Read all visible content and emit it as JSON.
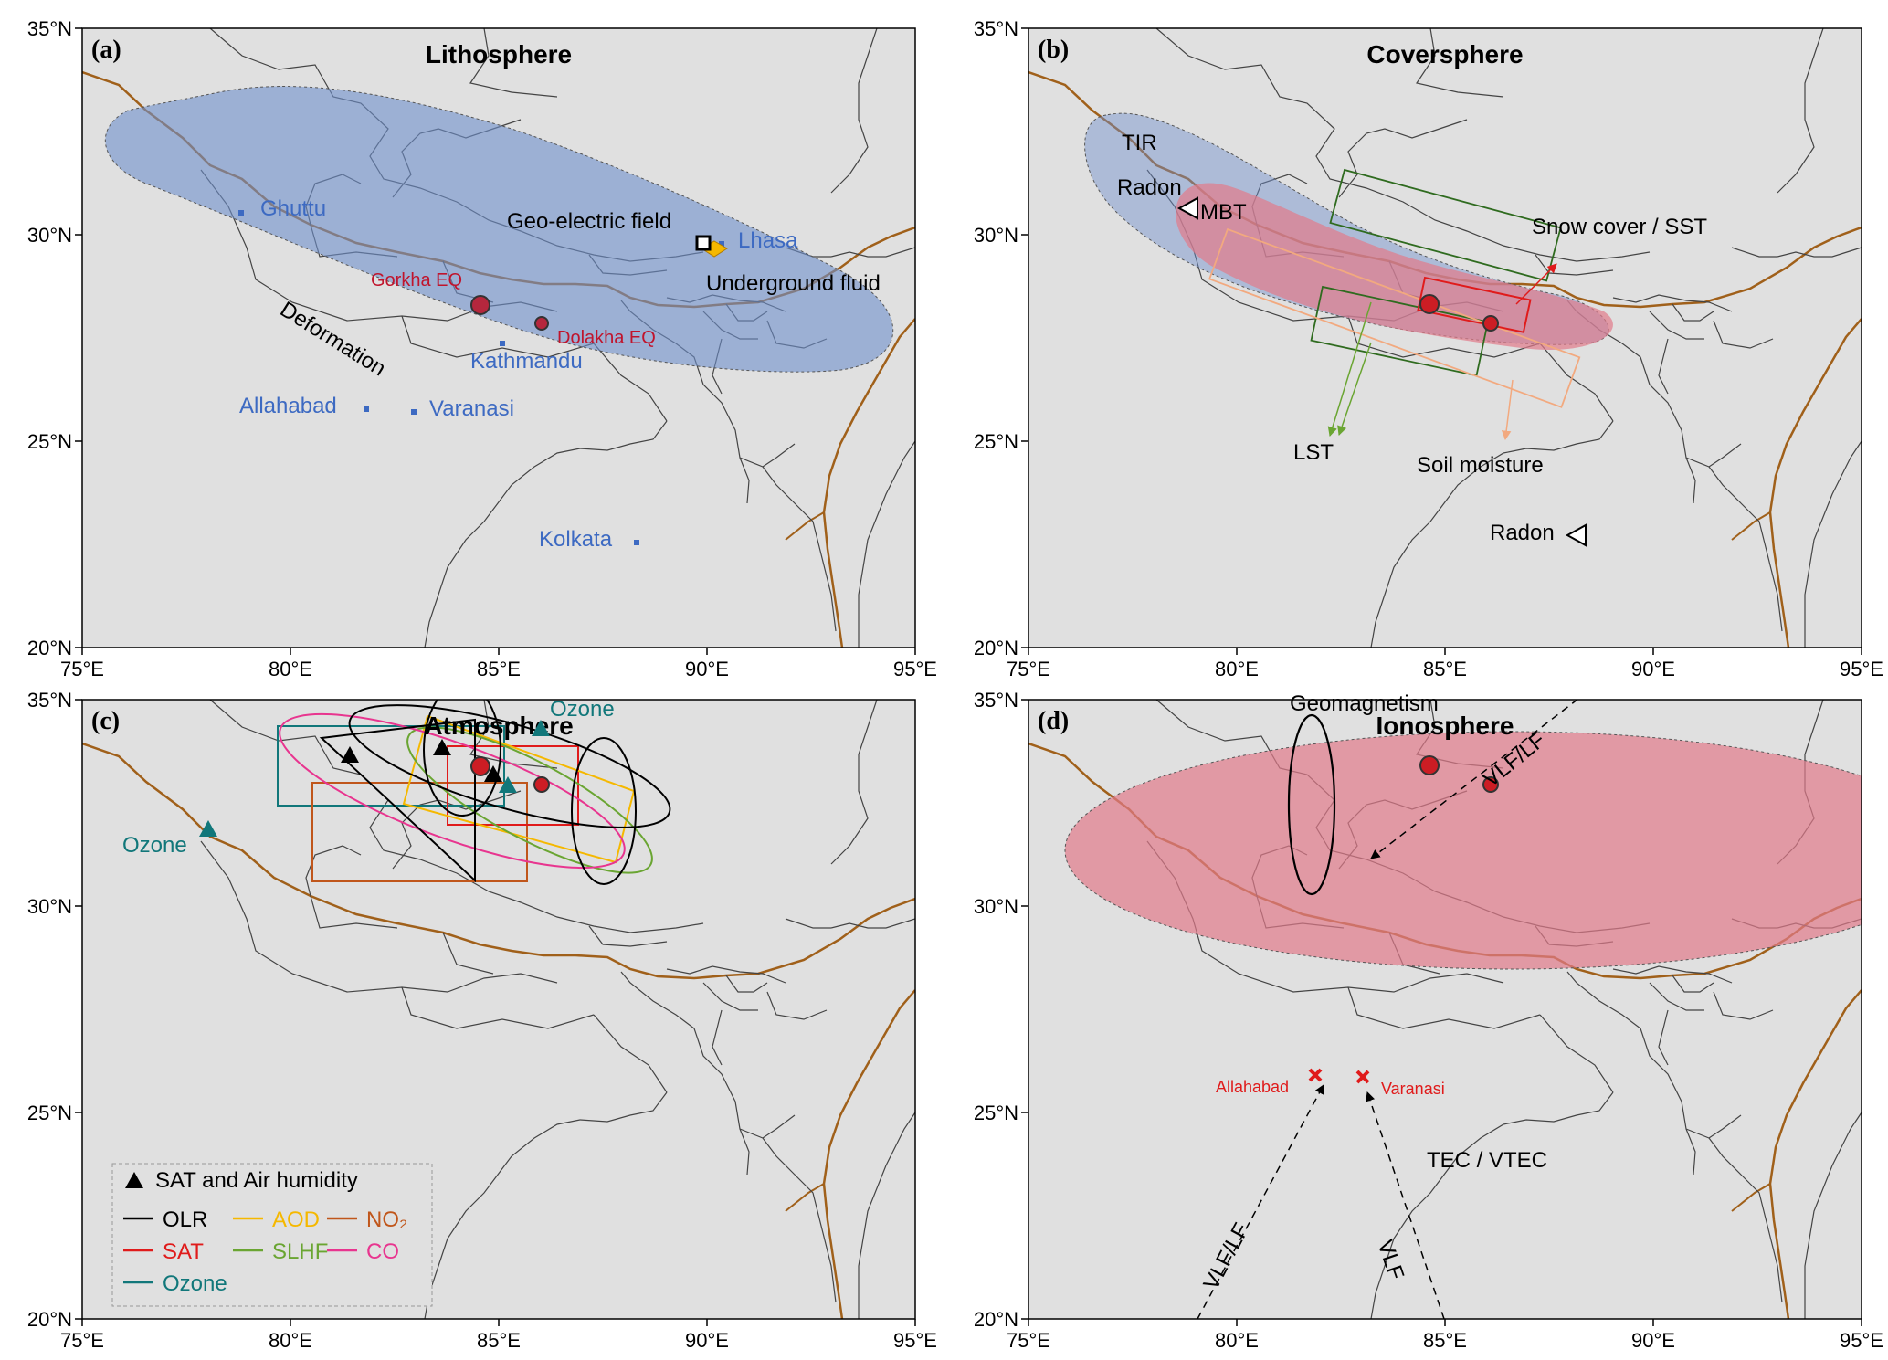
{
  "axes": {
    "x_ticks": [
      "75°E",
      "80°E",
      "85°E",
      "90°E",
      "95°E"
    ],
    "y_ticks": [
      "20°N",
      "25°N",
      "30°N",
      "35°N"
    ]
  },
  "panels": {
    "a": {
      "label": "(a)",
      "title": "Lithosphere",
      "cities": [
        "Ghuttu",
        "Lhasa",
        "Kathmandu",
        "Allahabad",
        "Varanasi",
        "Kolkata"
      ],
      "gorkha": "Gorkha EQ",
      "dolakha": "Dolakha EQ",
      "geo_electric": "Geo-electric field",
      "underground": "Underground fluid",
      "deformation": "Deformation"
    },
    "b": {
      "label": "(b)",
      "title": "Coversphere",
      "tir": "TIR",
      "radon": "Radon",
      "mbt": "MBT",
      "snow": "Snow cover / SST",
      "lst": "LST",
      "soil": "Soil moisture",
      "radon2": "Radon"
    },
    "c": {
      "label": "(c)",
      "title": "Atmosphere",
      "ozone": "Ozone",
      "legend": {
        "marker_label": "SAT and Air humidity",
        "items": [
          {
            "label": "OLR",
            "color": "#000000"
          },
          {
            "label": "AOD",
            "color": "#f5b800"
          },
          {
            "label": "NO₂",
            "color": "#c0561b"
          },
          {
            "label": "SAT",
            "color": "#e01b1b"
          },
          {
            "label": "SLHF",
            "color": "#6aa532"
          },
          {
            "label": "CO",
            "color": "#e8358f"
          },
          {
            "label": "Ozone",
            "color": "#11777a"
          }
        ]
      }
    },
    "d": {
      "label": "(d)",
      "title": "Ionosphere",
      "geomag": "Geomagnetism",
      "allahabad": "Allahabad",
      "varanasi": "Varanasi",
      "tec": "TEC / VTEC",
      "vlflf1": "VLF/LF",
      "vlflf2": "VLF/LF",
      "vlf": "VLF"
    }
  }
}
